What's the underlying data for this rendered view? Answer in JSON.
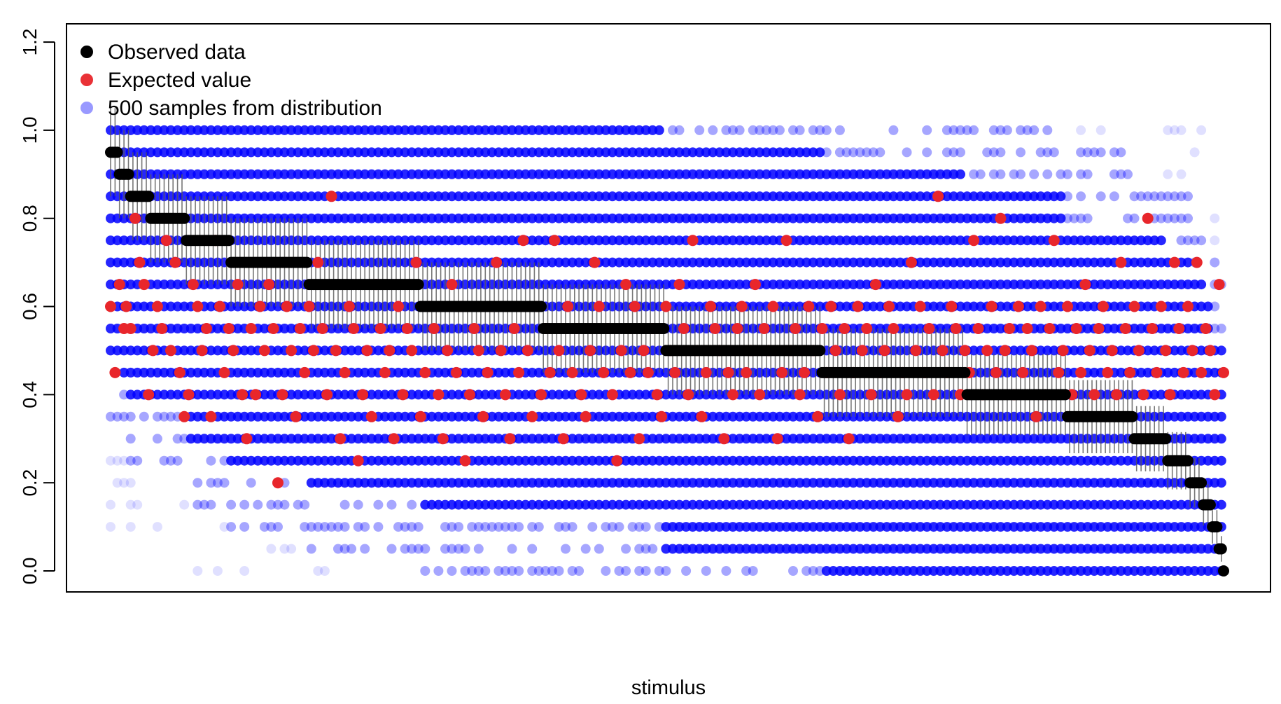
{
  "chart_data": {
    "type": "scatter",
    "title": "",
    "xlabel": "stimulus",
    "ylabel": "",
    "ylim": [
      -0.04,
      1.25
    ],
    "y_ticks": [
      "0.0",
      "0.2",
      "0.4",
      "0.6",
      "0.8",
      "1.0",
      "1.2"
    ],
    "x_ticks": [],
    "grid": false,
    "legend": {
      "position": "top-left",
      "entries": [
        {
          "label": "Observed data",
          "color": "#000000"
        },
        {
          "label": "Expected value",
          "color": "#e8262b"
        },
        {
          "label": "500 samples from distribution",
          "color": "#8080ff"
        }
      ]
    },
    "n_stimuli": 500,
    "sample_levels": [
      0.0,
      0.05,
      0.1,
      0.15,
      0.2,
      0.25,
      0.3,
      0.35,
      0.4,
      0.45,
      0.5,
      0.55,
      0.6,
      0.65,
      0.7,
      0.75,
      0.8,
      0.85,
      0.9,
      0.95,
      1.0
    ],
    "observed_steps": [
      {
        "y": 0.95,
        "from": 1,
        "to": 4
      },
      {
        "y": 0.9,
        "from": 5,
        "to": 9
      },
      {
        "y": 0.85,
        "from": 10,
        "to": 18
      },
      {
        "y": 0.8,
        "from": 19,
        "to": 34
      },
      {
        "y": 0.75,
        "from": 35,
        "to": 54
      },
      {
        "y": 0.7,
        "from": 55,
        "to": 89
      },
      {
        "y": 0.65,
        "from": 90,
        "to": 139
      },
      {
        "y": 0.6,
        "from": 140,
        "to": 194
      },
      {
        "y": 0.55,
        "from": 195,
        "to": 249
      },
      {
        "y": 0.5,
        "from": 250,
        "to": 319
      },
      {
        "y": 0.45,
        "from": 320,
        "to": 384
      },
      {
        "y": 0.4,
        "from": 385,
        "to": 429
      },
      {
        "y": 0.35,
        "from": 430,
        "to": 459
      },
      {
        "y": 0.3,
        "from": 460,
        "to": 474
      },
      {
        "y": 0.25,
        "from": 475,
        "to": 484
      },
      {
        "y": 0.2,
        "from": 485,
        "to": 490
      },
      {
        "y": 0.15,
        "from": 491,
        "to": 494
      },
      {
        "y": 0.1,
        "from": 495,
        "to": 497
      },
      {
        "y": 0.05,
        "from": 498,
        "to": 499
      },
      {
        "y": 0.0,
        "from": 500,
        "to": 500
      }
    ],
    "expected_values": [
      [
        1,
        0.6
      ],
      [
        3,
        0.45
      ],
      [
        5,
        0.65
      ],
      [
        7,
        0.55
      ],
      [
        8,
        0.6
      ],
      [
        10,
        0.55
      ],
      [
        12,
        0.8
      ],
      [
        14,
        0.7
      ],
      [
        16,
        0.65
      ],
      [
        18,
        0.4
      ],
      [
        20,
        0.5
      ],
      [
        22,
        0.6
      ],
      [
        24,
        0.55
      ],
      [
        26,
        0.75
      ],
      [
        28,
        0.5
      ],
      [
        30,
        0.7
      ],
      [
        32,
        0.45
      ],
      [
        34,
        0.35
      ],
      [
        36,
        0.4
      ],
      [
        38,
        0.65
      ],
      [
        40,
        0.6
      ],
      [
        42,
        0.5
      ],
      [
        44,
        0.55
      ],
      [
        46,
        0.35
      ],
      [
        48,
        0.75
      ],
      [
        50,
        0.6
      ],
      [
        52,
        0.45
      ],
      [
        54,
        0.55
      ],
      [
        56,
        0.5
      ],
      [
        58,
        0.65
      ],
      [
        60,
        0.4
      ],
      [
        62,
        0.3
      ],
      [
        64,
        0.55
      ],
      [
        66,
        0.4
      ],
      [
        68,
        0.6
      ],
      [
        70,
        0.5
      ],
      [
        72,
        0.65
      ],
      [
        74,
        0.55
      ],
      [
        76,
        0.2
      ],
      [
        78,
        0.4
      ],
      [
        80,
        0.6
      ],
      [
        82,
        0.5
      ],
      [
        84,
        0.35
      ],
      [
        86,
        0.55
      ],
      [
        88,
        0.45
      ],
      [
        90,
        0.6
      ],
      [
        92,
        0.5
      ],
      [
        94,
        0.7
      ],
      [
        96,
        0.55
      ],
      [
        98,
        0.4
      ],
      [
        100,
        0.85
      ],
      [
        102,
        0.5
      ],
      [
        104,
        0.3
      ],
      [
        106,
        0.45
      ],
      [
        108,
        0.6
      ],
      [
        110,
        0.55
      ],
      [
        112,
        0.25
      ],
      [
        114,
        0.4
      ],
      [
        116,
        0.5
      ],
      [
        118,
        0.35
      ],
      [
        120,
        0.65
      ],
      [
        122,
        0.55
      ],
      [
        124,
        0.45
      ],
      [
        126,
        0.5
      ],
      [
        128,
        0.3
      ],
      [
        130,
        0.6
      ],
      [
        132,
        0.4
      ],
      [
        134,
        0.55
      ],
      [
        136,
        0.5
      ],
      [
        138,
        0.7
      ],
      [
        140,
        0.35
      ],
      [
        142,
        0.45
      ],
      [
        144,
        0.6
      ],
      [
        146,
        0.55
      ],
      [
        148,
        0.4
      ],
      [
        150,
        0.3
      ],
      [
        152,
        0.5
      ],
      [
        154,
        0.65
      ],
      [
        156,
        0.45
      ],
      [
        158,
        0.6
      ],
      [
        160,
        0.25
      ],
      [
        162,
        0.4
      ],
      [
        164,
        0.55
      ],
      [
        166,
        0.5
      ],
      [
        168,
        0.35
      ],
      [
        170,
        0.45
      ],
      [
        172,
        0.6
      ],
      [
        174,
        0.7
      ],
      [
        176,
        0.5
      ],
      [
        178,
        0.4
      ],
      [
        180,
        0.3
      ],
      [
        182,
        0.55
      ],
      [
        184,
        0.45
      ],
      [
        186,
        0.75
      ],
      [
        188,
        0.5
      ],
      [
        190,
        0.35
      ],
      [
        192,
        0.6
      ],
      [
        194,
        0.4
      ],
      [
        196,
        0.55
      ],
      [
        198,
        0.45
      ],
      [
        200,
        0.75
      ],
      [
        202,
        0.5
      ],
      [
        204,
        0.3
      ],
      [
        206,
        0.6
      ],
      [
        208,
        0.45
      ],
      [
        210,
        0.55
      ],
      [
        212,
        0.4
      ],
      [
        214,
        0.35
      ],
      [
        216,
        0.5
      ],
      [
        218,
        0.7
      ],
      [
        220,
        0.6
      ],
      [
        222,
        0.45
      ],
      [
        224,
        0.55
      ],
      [
        226,
        0.4
      ],
      [
        228,
        0.25
      ],
      [
        230,
        0.5
      ],
      [
        232,
        0.65
      ],
      [
        234,
        0.45
      ],
      [
        236,
        0.6
      ],
      [
        238,
        0.3
      ],
      [
        240,
        0.5
      ],
      [
        242,
        0.45
      ],
      [
        244,
        0.55
      ],
      [
        246,
        0.4
      ],
      [
        248,
        0.35
      ],
      [
        250,
        0.6
      ],
      [
        252,
        0.5
      ],
      [
        254,
        0.45
      ],
      [
        256,
        0.65
      ],
      [
        258,
        0.55
      ],
      [
        260,
        0.4
      ],
      [
        262,
        0.75
      ],
      [
        264,
        0.5
      ],
      [
        266,
        0.35
      ],
      [
        268,
        0.45
      ],
      [
        270,
        0.6
      ],
      [
        272,
        0.55
      ],
      [
        274,
        0.5
      ],
      [
        276,
        0.3
      ],
      [
        278,
        0.45
      ],
      [
        280,
        0.4
      ],
      [
        282,
        0.55
      ],
      [
        284,
        0.6
      ],
      [
        286,
        0.45
      ],
      [
        288,
        0.5
      ],
      [
        290,
        0.65
      ],
      [
        292,
        0.4
      ],
      [
        294,
        0.55
      ],
      [
        296,
        0.5
      ],
      [
        298,
        0.6
      ],
      [
        300,
        0.3
      ],
      [
        302,
        0.45
      ],
      [
        304,
        0.75
      ],
      [
        306,
        0.5
      ],
      [
        308,
        0.55
      ],
      [
        310,
        0.4
      ],
      [
        312,
        0.45
      ],
      [
        314,
        0.6
      ],
      [
        316,
        0.5
      ],
      [
        318,
        0.35
      ],
      [
        320,
        0.55
      ],
      [
        322,
        0.45
      ],
      [
        324,
        0.6
      ],
      [
        326,
        0.5
      ],
      [
        328,
        0.4
      ],
      [
        330,
        0.55
      ],
      [
        332,
        0.3
      ],
      [
        334,
        0.45
      ],
      [
        336,
        0.6
      ],
      [
        338,
        0.5
      ],
      [
        340,
        0.55
      ],
      [
        342,
        0.4
      ],
      [
        344,
        0.65
      ],
      [
        346,
        0.45
      ],
      [
        348,
        0.5
      ],
      [
        350,
        0.6
      ],
      [
        352,
        0.55
      ],
      [
        354,
        0.35
      ],
      [
        356,
        0.45
      ],
      [
        358,
        0.4
      ],
      [
        360,
        0.7
      ],
      [
        362,
        0.5
      ],
      [
        364,
        0.6
      ],
      [
        366,
        0.45
      ],
      [
        368,
        0.55
      ],
      [
        370,
        0.4
      ],
      [
        372,
        0.85
      ],
      [
        374,
        0.5
      ],
      [
        376,
        0.45
      ],
      [
        378,
        0.6
      ],
      [
        380,
        0.55
      ],
      [
        382,
        0.4
      ],
      [
        384,
        0.5
      ],
      [
        386,
        0.45
      ],
      [
        388,
        0.75
      ],
      [
        390,
        0.55
      ],
      [
        392,
        0.4
      ],
      [
        394,
        0.5
      ],
      [
        396,
        0.6
      ],
      [
        398,
        0.45
      ],
      [
        400,
        0.8
      ],
      [
        402,
        0.5
      ],
      [
        404,
        0.55
      ],
      [
        406,
        0.4
      ],
      [
        408,
        0.6
      ],
      [
        410,
        0.45
      ],
      [
        412,
        0.55
      ],
      [
        414,
        0.5
      ],
      [
        416,
        0.35
      ],
      [
        418,
        0.6
      ],
      [
        420,
        0.4
      ],
      [
        422,
        0.55
      ],
      [
        424,
        0.75
      ],
      [
        426,
        0.45
      ],
      [
        428,
        0.5
      ],
      [
        430,
        0.6
      ],
      [
        432,
        0.4
      ],
      [
        434,
        0.55
      ],
      [
        436,
        0.45
      ],
      [
        438,
        0.65
      ],
      [
        440,
        0.5
      ],
      [
        442,
        0.4
      ],
      [
        444,
        0.55
      ],
      [
        446,
        0.6
      ],
      [
        448,
        0.45
      ],
      [
        450,
        0.5
      ],
      [
        452,
        0.4
      ],
      [
        454,
        0.7
      ],
      [
        456,
        0.55
      ],
      [
        458,
        0.45
      ],
      [
        460,
        0.6
      ],
      [
        462,
        0.5
      ],
      [
        464,
        0.4
      ],
      [
        466,
        0.8
      ],
      [
        468,
        0.55
      ],
      [
        470,
        0.45
      ],
      [
        472,
        0.6
      ],
      [
        474,
        0.5
      ],
      [
        476,
        0.4
      ],
      [
        478,
        0.7
      ],
      [
        480,
        0.55
      ],
      [
        482,
        0.45
      ],
      [
        484,
        0.6
      ],
      [
        486,
        0.5
      ],
      [
        488,
        0.7
      ],
      [
        490,
        0.45
      ],
      [
        492,
        0.55
      ],
      [
        494,
        0.5
      ],
      [
        496,
        0.4
      ],
      [
        498,
        0.65
      ],
      [
        500,
        0.45
      ]
    ],
    "colors": {
      "observed": "#000000",
      "expected": "#e8262b",
      "samples": "#0000ff",
      "interval": "#555555"
    }
  }
}
